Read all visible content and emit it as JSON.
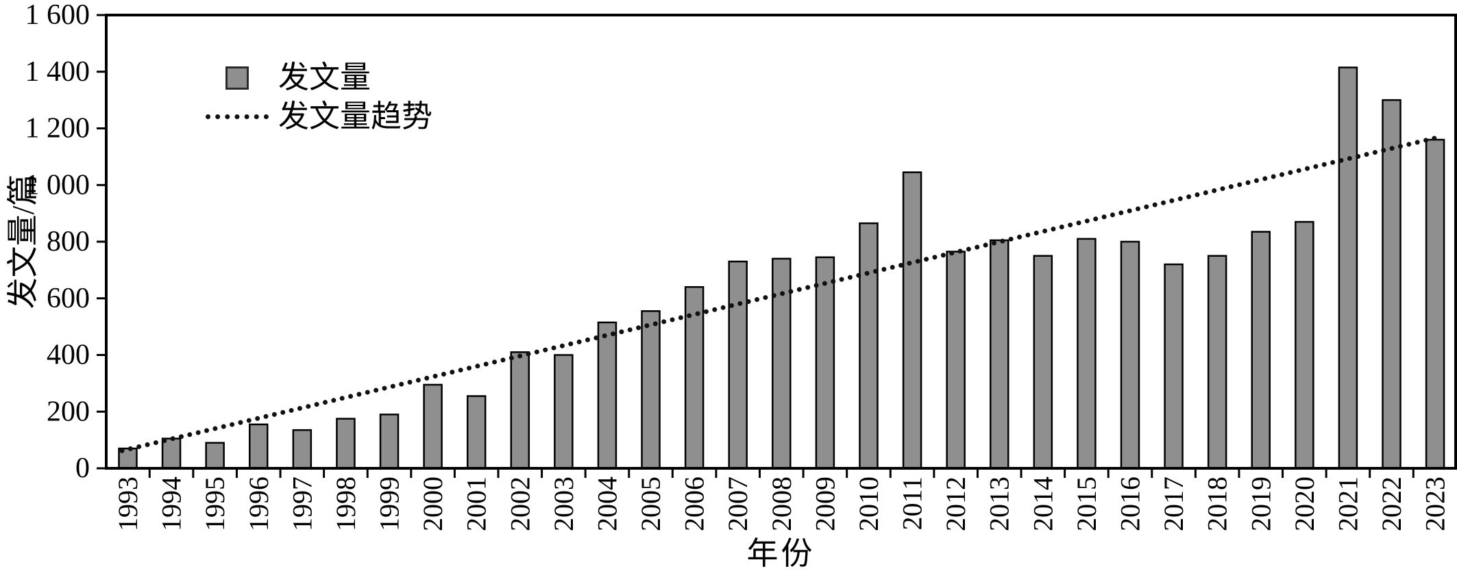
{
  "chart_data": {
    "type": "bar",
    "title": "",
    "xlabel": "年份",
    "ylabel": "发文量/篇",
    "ylim": [
      0,
      1600
    ],
    "y_tick_step": 200,
    "y_tick_labels": [
      "0",
      "200",
      "400",
      "600",
      "800",
      "1 000",
      "1 200",
      "1 400",
      "1 600"
    ],
    "grid": false,
    "legend_position": "upper-left-inside",
    "categories": [
      "1993",
      "1994",
      "1995",
      "1996",
      "1997",
      "1998",
      "1999",
      "2000",
      "2001",
      "2002",
      "2003",
      "2004",
      "2005",
      "2006",
      "2007",
      "2008",
      "2009",
      "2010",
      "2011",
      "2012",
      "2013",
      "2014",
      "2015",
      "2016",
      "2017",
      "2018",
      "2019",
      "2020",
      "2021",
      "2022",
      "2023"
    ],
    "series": [
      {
        "name": "发文量",
        "values": [
          70,
          105,
          90,
          155,
          135,
          175,
          190,
          295,
          255,
          410,
          400,
          515,
          555,
          640,
          730,
          740,
          745,
          865,
          1045,
          765,
          805,
          750,
          810,
          800,
          720,
          750,
          835,
          870,
          1415,
          1300,
          1160
        ]
      }
    ],
    "trend": {
      "name": "发文量趋势",
      "style": "dotted-line",
      "start_year": "1993",
      "end_year": "2023",
      "start_value": 62,
      "end_value": 1172
    },
    "legend": {
      "items": [
        "发文量",
        "发文量趋势"
      ]
    },
    "bar_color": "#8f8f8f",
    "bar_border_color": "#000000",
    "trend_color": "#111111",
    "axis_color": "#000000",
    "background_color": "#ffffff"
  }
}
